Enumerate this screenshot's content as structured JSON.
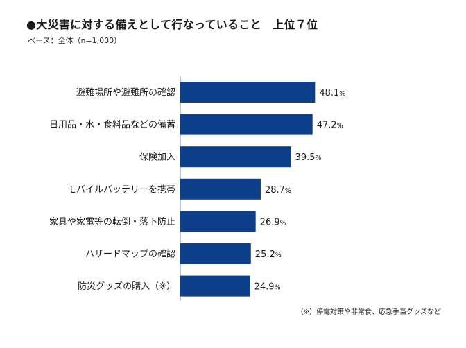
{
  "title": "●大災害に対する備えとして行なっていること　上位７位",
  "subtitle": "ベース：全体（n=1,000）",
  "footnote": "（※）停電対策や非常食、応急手当グッズなど",
  "colors": {
    "bar": "#0d3e8a",
    "axis": "#888888"
  },
  "chart_data": {
    "type": "bar",
    "orientation": "horizontal",
    "categories": [
      "避難場所や避難所の確認",
      "日用品・水・食料品などの備蓄",
      "保険加入",
      "モバイルバッテリーを携帯",
      "家具や家電等の転倒・落下防止",
      "ハザードマップの確認",
      "防災グッズの購入（※）"
    ],
    "values": [
      48.1,
      47.2,
      39.5,
      28.7,
      26.9,
      25.2,
      24.9
    ],
    "value_suffix": "%",
    "title": "●大災害に対する備えとして行なっていること　上位７位",
    "xlim": [
      0,
      100
    ],
    "grid": false,
    "legend": "none"
  }
}
